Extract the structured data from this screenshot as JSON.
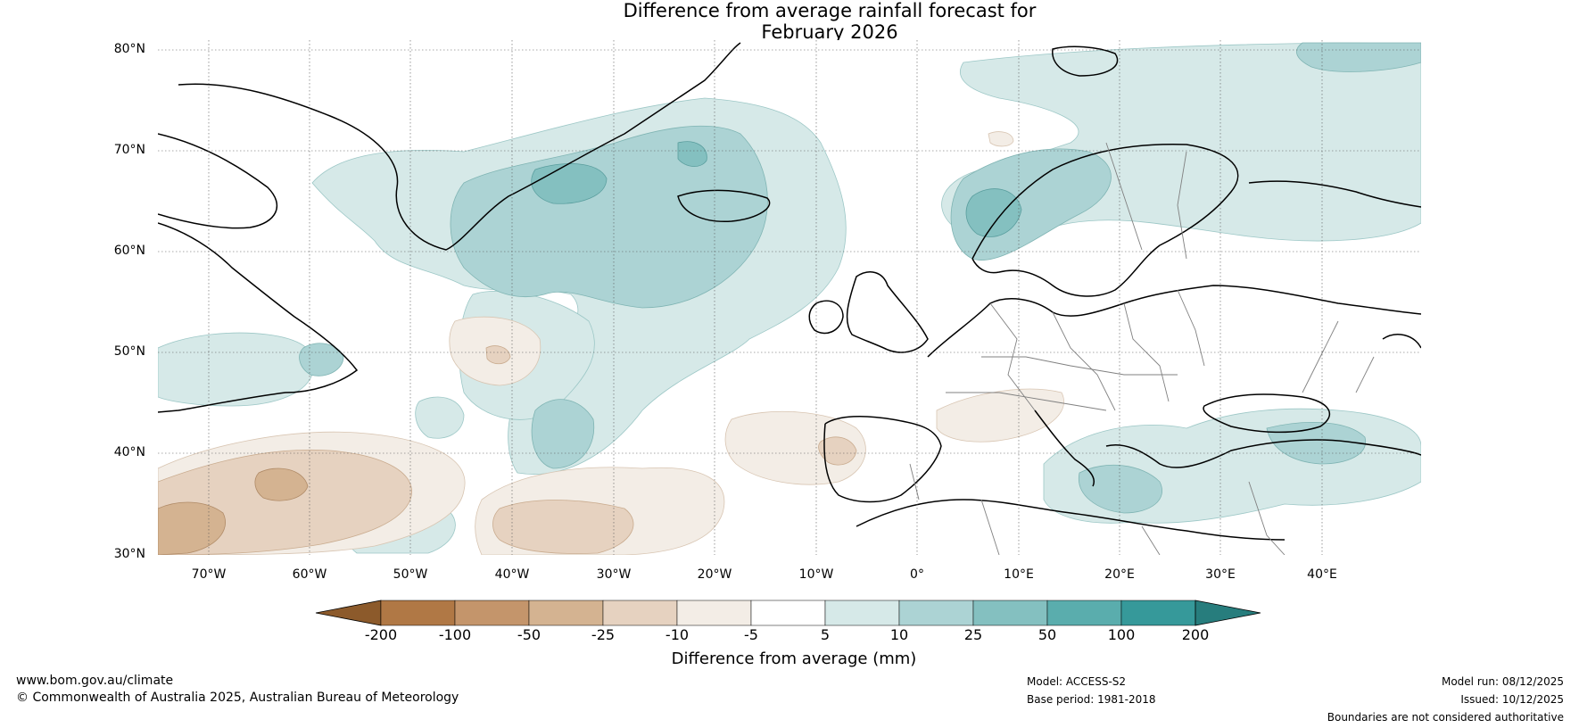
{
  "title_line1": "Difference from average rainfall forecast for",
  "title_line2": "February 2026",
  "lat_labels": [
    "80°N",
    "70°N",
    "60°N",
    "50°N",
    "40°N",
    "30°N"
  ],
  "lon_labels": [
    "70°W",
    "60°W",
    "50°W",
    "40°W",
    "30°W",
    "20°W",
    "10°W",
    "0°",
    "10°E",
    "20°E",
    "30°E",
    "40°E"
  ],
  "colorbar": {
    "title": "Difference from average (mm)",
    "ticks": [
      "-200",
      "-100",
      "-50",
      "-25",
      "-10",
      "-5",
      "5",
      "10",
      "25",
      "50",
      "100",
      "200"
    ],
    "colors": [
      "#8c5a2b",
      "#b07845",
      "#c4956b",
      "#d4b391",
      "#e6d2c0",
      "#f3ede6",
      "#ffffff",
      "#d6e9e8",
      "#acd3d4",
      "#84c0c0",
      "#5aadad",
      "#36999a",
      "#277d7d"
    ]
  },
  "footer": {
    "website": "www.bom.gov.au/climate",
    "copyright": "© Commonwealth of Australia 2025, Australian Bureau of Meteorology",
    "model": "Model: ACCESS-S2",
    "base_period": "Base period: 1981-2018",
    "model_run": "Model run: 08/12/2025",
    "issued": "Issued: 10/12/2025",
    "disclaimer": "Boundaries are not considered authoritative"
  },
  "map_extent": {
    "lon_min": -75,
    "lon_max": 50,
    "lat_min": 30,
    "lat_max": 81
  }
}
